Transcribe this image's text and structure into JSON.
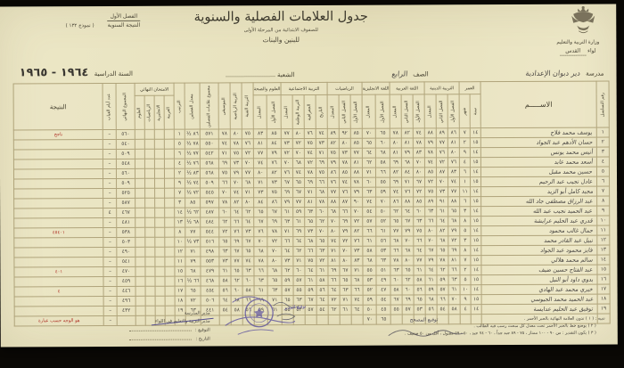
{
  "form": {
    "form_no": "( نموذج ١٣٢ )",
    "term_label": "الفصل الأول",
    "annual_label": "النتيجة السنوية"
  },
  "header": {
    "title": "جدول العلامات الفصلية والسنوية",
    "subtitle": "للصفوف الابتدائية من المرحلة الأولى",
    "audience": "للبنين والبنات",
    "ministry": "وزارة التربية والتعليم",
    "district_label": "لواء",
    "district_value": "القدس"
  },
  "info": {
    "school_label": "مدرسة",
    "school_value": "دير دبوان الإعدادية",
    "class_label": "الصف",
    "class_value": "الرابع",
    "section_label": "الشعبة",
    "section_value": "",
    "year_label": "السنة الدراسية",
    "year_value": "١٩٦٤ - ١٩٦٥"
  },
  "table": {
    "serial_label": "رقم التسلسل",
    "name_label": "الاســـــم",
    "groups": [
      {
        "label": "العمر",
        "subs": [
          "سنة",
          "شهر"
        ]
      },
      {
        "label": "التربية الدينية",
        "subs": [
          "الفصل الأول",
          "الفصل الثاني",
          "المعدل"
        ]
      },
      {
        "label": "اللغة العربية",
        "subs": [
          "الفصل الأول",
          "الفصل الثاني",
          "المعدل"
        ]
      },
      {
        "label": "اللغة الانجليزية",
        "subs": [
          "الفصل الأول",
          "المعدل"
        ]
      },
      {
        "label": "الرياضيات",
        "subs": [
          "الفصل الأول",
          "الفصل الثاني",
          "المعدل"
        ]
      },
      {
        "label": "التربية الاجتماعية",
        "subs": [
          "التاريخ",
          "الجغرافية",
          "التربية الوطنية",
          "المعدل"
        ]
      },
      {
        "label": "العلوم والصحة",
        "subs": [
          "الفصل الأول",
          "المعدل"
        ]
      },
      {
        "label": "التربية الفنية",
        "subs": []
      },
      {
        "label": "التربية الرياضية",
        "subs": []
      },
      {
        "label": "الموسيقى",
        "subs": []
      },
      {
        "label": "مجموع علامات الفصلين",
        "subs": []
      },
      {
        "label": "معدل الفصلين",
        "subs": []
      },
      {
        "label": "الترتيب",
        "subs": []
      },
      {
        "label": "الامتحان النهائي",
        "subs": [
          "العربية",
          "الانجليزية",
          "الرياضيات",
          "العلوم"
        ]
      },
      {
        "label": "المجموع النهائي",
        "subs": []
      },
      {
        "label": "عدد أيام الغياب",
        "subs": []
      },
      {
        "label": "النتيجة",
        "subs": [],
        "wide": true
      }
    ],
    "rows": [
      [
        "١",
        "يوسف محمد فلاح",
        "١٤",
        "٧",
        "٨٦",
        "٨٩",
        "٨٨",
        "٧٤",
        "٨٢",
        "٧٨",
        "٦٥",
        "٧٠",
        "٨٥",
        "٩٢",
        "٨٩",
        "٧٤",
        "٧٦",
        "٨٠",
        "٧٧",
        "٨٥",
        "٨٣",
        "٧٥",
        "٨٠",
        "٧٨",
        "٥٧١",
        "٨٦ ½",
        "١",
        "",
        "",
        "",
        "",
        "٥٦٠",
        "–",
        "*ناجح"
      ],
      [
        "٢",
        "حسان الأدهم عبد الجواد",
        "١٥",
        "٢",
        "٨١",
        "٧٧",
        "٧٩",
        "٧٨",
        "٨١",
        "٨٠",
        "٦٠",
        "٦٥",
        "٨٥",
        "٨٠",
        "٨٢",
        "٧٣",
        "٧٥",
        "٧٢",
        "٧٣",
        "٨٤",
        "٨١",
        "٧٦",
        "٧٨",
        "٧٤",
        "٥٥٠",
        "٧٨ ½",
        "٥",
        "",
        "",
        "",
        "",
        "٥٤٠",
        "–",
        ""
      ],
      [
        "٣",
        "أنيس محمد يونس",
        "١٤",
        "٩",
        "٨٠",
        "٧٦",
        "٧٨",
        "٨٣",
        "٧٩",
        "٨١",
        "٦٨",
        "٦٤",
        "٧٧",
        "٧٣",
        "٧٥",
        "٧١",
        "٧٤",
        "٧٠",
        "٧٢",
        "٧٩",
        "٧٧",
        "٧٢",
        "٧٥",
        "٧١",
        "٥٤٢",
        "٧٧ ½",
        "٦",
        "",
        "",
        "",
        "",
        "٥٠٩",
        "–",
        ""
      ],
      [
        "٤",
        "أسعد محمد عابد",
        "١٥",
        "٤",
        "٧٦",
        "٧٢",
        "٧٤",
        "٧٠",
        "٦٨",
        "٦٩",
        "٥٨",
        "٦٢",
        "٨١",
        "٧٨",
        "٧٩",
        "٦٩",
        "٧٢",
        "٦٨",
        "٧٠",
        "٧٦",
        "٧٤",
        "٧٠",
        "٧٣",
        "٦٩",
        "٥٦٨",
        "٧٦ ½",
        "٤",
        "",
        "",
        "",
        "",
        "٥٤٨",
        "–",
        ""
      ],
      [
        "٥",
        "حسين محمد مقبل",
        "١٤",
        "٦",
        "٨٣",
        "٨٧",
        "٨٥",
        "٨٠",
        "٨٤",
        "٨٢",
        "٦٦",
        "٧١",
        "٨٨",
        "٨٥",
        "٨٦",
        "٧٥",
        "٧٨",
        "٧٤",
        "٧٦",
        "٨٢",
        "٨٠",
        "٧٧",
        "٧٩",
        "٧٥",
        "٥٦٨",
        "٨٣ ½",
        "٢",
        "",
        "",
        "",
        "",
        "٥٦٠",
        "–",
        ""
      ],
      [
        "٦",
        "عادل نجيب عبد الرحيم",
        "١٥",
        "١",
        "٧٤",
        "٧٠",
        "٧٢",
        "٦٧",
        "٧١",
        "٦٩",
        "٥٥",
        "٦٠",
        "٧٨",
        "٧٤",
        "٧٦",
        "٦٦",
        "٦٩",
        "٦٥",
        "٦٧",
        "٧٣",
        "٧١",
        "٦٨",
        "٧٠",
        "٦٦",
        "٥٠٩",
        "٧٤ ½",
        "٩",
        "",
        "",
        "",
        "",
        "٥٠٩",
        "–",
        ""
      ],
      [
        "٧",
        "مجيد كامل أبو الزيد",
        "١٤",
        "١١",
        "٧٧",
        "٧٣",
        "٧٥",
        "٧٢",
        "٧٦",
        "٧٤",
        "٥٩",
        "٦٣",
        "٧٩",
        "٧٦",
        "٧٧",
        "٦٨",
        "٧١",
        "٦٧",
        "٦٩",
        "٧٥",
        "٧٣",
        "٧١",
        "٧٤",
        "٧٠",
        "٥٤٥",
        "٧٢ ½",
        "٧",
        "",
        "",
        "",
        "",
        "٥٢٥",
        "–",
        ""
      ],
      [
        "٨",
        "عبد الرزاق مصطفى جاد الله",
        "١٥",
        "٦",
        "٨٨",
        "٩١",
        "٨٩",
        "٨٥",
        "٨٨",
        "٨٦",
        "٧٠",
        "٧٤",
        "٩٠",
        "٨٧",
        "٨٨",
        "٧٨",
        "٨١",
        "٧٧",
        "٧٩",
        "٨٦",
        "٨٤",
        "٨٠",
        "٨٢",
        "٧٨",
        "٥٩٧",
        "٨٥",
        "٣",
        "",
        "",
        "",
        "",
        "٥٨٧",
        "–",
        ""
      ],
      [
        "٩",
        "عبد الحميد نجيب عبد الله",
        "١٤",
        "٣",
        "٦٥",
        "٦١",
        "٦٣",
        "٦٠",
        "٦٤",
        "٦٢",
        "٥٠",
        "٥٤",
        "٧٠",
        "٦٦",
        "٦٨",
        "٦٠",
        "٦٣",
        "٥٩",
        "٦١",
        "٦٧",
        "٦٥",
        "٦٢",
        "٦٤",
        "٦٠",
        "٤٨٧",
        "٦٢ ½",
        "١٤",
        "",
        "",
        "",
        "",
        "٤٦٧",
        "٤",
        ""
      ],
      [
        "١٠",
        "قدري عبد الحليم عرايشة",
        "١٥",
        "٨",
        "٦٨",
        "٦٤",
        "٦٦",
        "٦٣",
        "٦٧",
        "٦٥",
        "٥٢",
        "٥٧",
        "٧٢",
        "٦٩",
        "٧٠",
        "٦٢",
        "٦٥",
        "٦١",
        "٦٣",
        "٦٩",
        "٦٧",
        "٦٤",
        "٦٦",
        "٦٢",
        "٤٨٤",
        "٦٨ ½",
        "١٣",
        "",
        "",
        "",
        "",
        "٤٨١",
        "–",
        ""
      ],
      [
        "١١",
        "جمال غالب محمود",
        "١٤",
        "٥",
        "٧٩",
        "٨٢",
        "٨٠",
        "٧٥",
        "٧٩",
        "٧٧",
        "٦١",
        "٦٦",
        "٨٢",
        "٧٩",
        "٨٠",
        "٧٠",
        "٧٣",
        "٦٩",
        "٧١",
        "٧٨",
        "٧٦",
        "٧٣",
        "٧٦",
        "٧٢",
        "٥٤٤",
        "٧٧",
        "٨",
        "",
        "",
        "",
        "",
        "٥٣٨",
        "–",
        "*٤٥٤٠١"
      ],
      [
        "١٢",
        "نبيل عبد القادر محمد",
        "١٥",
        "٣",
        "٧٢",
        "٦٨",
        "٧٠",
        "٦٦",
        "٧٠",
        "٦٨",
        "٥٦",
        "٦١",
        "٧٦",
        "٧٢",
        "٧٤",
        "٦٥",
        "٦٨",
        "٦٤",
        "٦٦",
        "٧٢",
        "٧٠",
        "٦٧",
        "٦٩",
        "٦٥",
        "٥١٦",
        "٧٣ ½",
        "١٠",
        "",
        "",
        "",
        "",
        "٥٠٣",
        "–",
        ""
      ],
      [
        "١٣",
        "فايز محمود عبد الجواد",
        "١٤",
        "٨",
        "٦٩",
        "٦٥",
        "٦٧",
        "٦٤",
        "٦٨",
        "٦٦",
        "٥٣",
        "٥٨",
        "٧٣",
        "٧٠",
        "٧١",
        "٦٣",
        "٦٦",
        "٦٢",
        "٦٤",
        "٧٠",
        "٦٨",
        "٦٥",
        "٦٧",
        "٦٣",
        "٤٩٨",
        "٧١",
        "١٢",
        "",
        "",
        "",
        "",
        "٤٩٠",
        "–",
        ""
      ],
      [
        "١٤",
        "سالم محمد هلالي",
        "١٥",
        "٧",
        "٨١",
        "٧٨",
        "٧٩",
        "٧٧",
        "٨٠",
        "٧٨",
        "٦٣",
        "٦٨",
        "٨٣",
        "٨٠",
        "٨١",
        "٧٢",
        "٧٥",
        "٧١",
        "٧٣",
        "٨٠",
        "٧٨",
        "٧٤",
        "٧٧",
        "٧٣",
        "٥٥٣",
        "٧٩",
        "١١",
        "",
        "",
        "",
        "",
        "٥٤١",
        "–",
        ""
      ],
      [
        "١٥",
        "عبد الفتاح حسين ضيف",
        "١٤",
        "٢",
        "٦٦",
        "٦٢",
        "٦٤",
        "٦١",
        "٦٥",
        "٦٣",
        "٥١",
        "٥٥",
        "٧١",
        "٦٧",
        "٦٩",
        "٦١",
        "٦٤",
        "٦٠",
        "٦٢",
        "٦٨",
        "٦٦",
        "٦٣",
        "٦٥",
        "٦١",
        "٤٧٩",
        "٦٨",
        "١٥",
        "",
        "",
        "",
        "",
        "٤٧٠",
        "–",
        "*٤٠١"
      ],
      [
        "١٦",
        "بدوي داود أبو النيل",
        "١٥",
        "٥",
        "٦٣",
        "٥٩",
        "٦١",
        "٥٨",
        "٦٢",
        "٦٠",
        "٤٩",
        "٥٣",
        "٦٨",
        "٦٥",
        "٦٦",
        "٥٨",
        "٦١",
        "٥٧",
        "٥٩",
        "٦٥",
        "٦٣",
        "٦٠",
        "٦٢",
        "٥٨",
        "٤٦٨",
        "٦٦ ½",
        "١٦",
        "",
        "",
        "",
        "",
        "٤٥٩",
        "–",
        ""
      ],
      [
        "١٧",
        "خيري محمد عبد الهادي",
        "١٤",
        "١٠",
        "٦١",
        "٥٧",
        "٥٩",
        "٥٦",
        "٦٠",
        "٥٨",
        "٤٧",
        "٥٢",
        "٦٦",
        "٦٣",
        "٦٤",
        "٥٦",
        "٥٩",
        "٥٥",
        "٥٧",
        "٦٣",
        "٦١",
        "٥٨",
        "٦٠",
        "٥٦",
        "٤٥٤",
        "٦٥",
        "١٧",
        "",
        "",
        "",
        "",
        "٤٤٦",
        "–",
        "*٤"
      ],
      [
        "١٨",
        "عبد الحميد محمد الجيوسي",
        "١٥",
        "٩",
        "٧٠",
        "٦٦",
        "٦٨",
        "٦٥",
        "٦٩",
        "٦٧",
        "٥٤",
        "٥٩",
        "٧٤",
        "٧١",
        "٧٢",
        "٦٤",
        "٦٧",
        "٦٣",
        "٦٥",
        "٧١",
        "٦٩",
        "٦٦",
        "٦٨",
        "٦٤",
        "٥٠٦",
        "٧٢",
        "١٨",
        "",
        "",
        "",
        "",
        "٤٩٦",
        "–",
        ""
      ],
      [
        "١٩",
        "توفيق عبد الحليم عدايسة",
        "١٤",
        "٤",
        "٥٨",
        "٥٤",
        "٥٦",
        "٥٣",
        "٥٧",
        "٥٥",
        "٤٥",
        "٥٠",
        "٦٤",
        "٦١",
        "٦٢",
        "٥٤",
        "٥٧",
        "٥٣",
        "٥٥",
        "٦١",
        "٥٩",
        "٥٦",
        "٥٨",
        "٥٤",
        "٤٤١",
        "٦٣",
        "١٩",
        "",
        "",
        "",
        "",
        "٤٣٢",
        "–",
        ""
      ],
      [
        "",
        "",
        "",
        "",
        "",
        "",
        "",
        "",
        "",
        "",
        "٦٥",
        "٧٠",
        "",
        "",
        "",
        "",
        "",
        "",
        "",
        "",
        "",
        "",
        "",
        "",
        "",
        "",
        "",
        "",
        "",
        "",
        "",
        "",
        "–",
        "*هو الوجه حسب عبارة"
      ]
    ]
  },
  "footer": {
    "left_line0": "مدير المدرسة",
    "left_line1": "مدير التربية والتعليم في اللواء",
    "sig_label": "التوقيع :",
    "date_label": "التاريخ :",
    "director_label": "توقيع المدير",
    "corrector_label": "توقيع المصحح",
    "notes": [
      "تنبيه : ( ١ ) تدون العلامة النهائية بالحبر الأحمر .",
      "( ٢ ) يوضع خط بالحبر الأحمر تحت معدل كل مبحث رسب فيه الطالب .",
      "( ٣ ) يكون التقدير : من ٩٠ - ١٠٠ ممتاز ، ٧٥ - ٨٩ جيد جداً ، ٦٠ - ٧٤ جيد ، ٥٠ - ٥٩ مقبول ، أقل من ٥٠ ضعيف ."
    ]
  },
  "colors": {
    "paper": "#ece7c6",
    "ink": "#4f4b45",
    "print": "#45402f",
    "grid_line": "#b0a47b",
    "red_ink": "#b03328",
    "stamp_purple": "#5b4f9e"
  }
}
